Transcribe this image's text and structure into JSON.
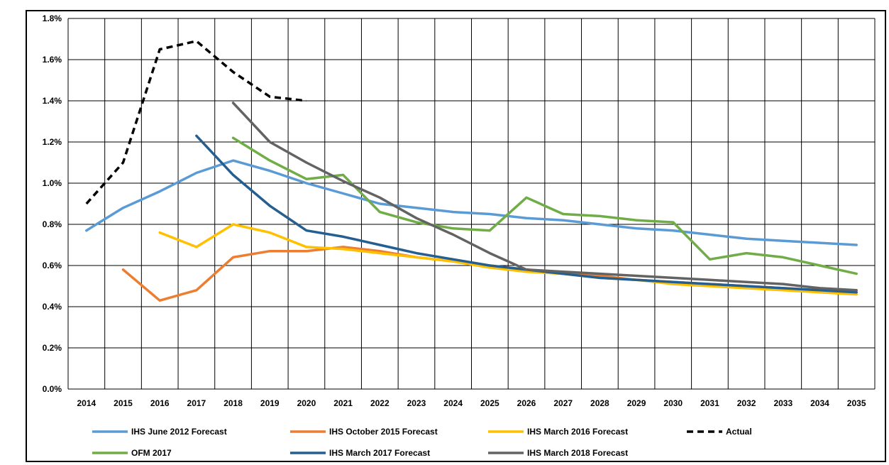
{
  "header": {
    "title_fragment": ""
  },
  "chart_data": {
    "type": "line",
    "title": "",
    "xlabel": "",
    "ylabel": "",
    "x": [
      2014,
      2015,
      2016,
      2017,
      2018,
      2019,
      2020,
      2021,
      2022,
      2023,
      2024,
      2025,
      2026,
      2027,
      2028,
      2029,
      2030,
      2031,
      2032,
      2033,
      2034,
      2035
    ],
    "ylim": [
      0,
      1.8
    ],
    "y_ticks": [
      0,
      0.2,
      0.4,
      0.6,
      0.8,
      1.0,
      1.2,
      1.4,
      1.6,
      1.8
    ],
    "y_tick_labels": [
      "0.0%",
      "0.2%",
      "0.4%",
      "0.6%",
      "0.8%",
      "1.0%",
      "1.2%",
      "1.4%",
      "1.6%",
      "1.8%"
    ],
    "x_tick_labels": [
      "2014",
      "2015",
      "2016",
      "2017",
      "2018",
      "2019",
      "2020",
      "2021",
      "2022",
      "2023",
      "2024",
      "2025",
      "2026",
      "2027",
      "2028",
      "2029",
      "2030",
      "2031",
      "2032",
      "2033",
      "2034",
      "2035"
    ],
    "grid": true,
    "legend_position": "bottom",
    "series": [
      {
        "name": "IHS June 2012 Forecast",
        "color": "#5B9BD5",
        "dashed": false,
        "values": [
          0.77,
          0.88,
          0.96,
          1.05,
          1.11,
          1.06,
          1.0,
          0.95,
          0.9,
          0.88,
          0.86,
          0.85,
          0.83,
          0.82,
          0.8,
          0.78,
          0.77,
          0.75,
          0.73,
          0.72,
          0.71,
          0.7
        ]
      },
      {
        "name": "IHS October 2015 Forecast",
        "color": "#ED7D31",
        "dashed": false,
        "values": [
          null,
          0.58,
          0.43,
          0.48,
          0.64,
          0.67,
          0.67,
          0.69,
          0.67,
          0.64,
          0.62,
          0.6,
          0.58,
          0.56,
          0.55,
          0.53,
          0.52,
          0.51,
          0.5,
          0.49,
          0.48,
          0.47
        ]
      },
      {
        "name": "IHS March 2016 Forecast",
        "color": "#FFC000",
        "dashed": false,
        "values": [
          null,
          null,
          0.76,
          0.69,
          0.8,
          0.76,
          0.69,
          0.68,
          0.66,
          0.64,
          0.62,
          0.59,
          0.57,
          0.56,
          0.54,
          0.53,
          0.51,
          0.5,
          0.49,
          0.48,
          0.47,
          0.46
        ]
      },
      {
        "name": "Actual",
        "color": "#000000",
        "dashed": true,
        "values": [
          0.9,
          1.1,
          1.65,
          1.69,
          1.54,
          1.42,
          1.4,
          null,
          null,
          null,
          null,
          null,
          null,
          null,
          null,
          null,
          null,
          null,
          null,
          null,
          null,
          null
        ]
      },
      {
        "name": "OFM 2017",
        "color": "#70AD47",
        "dashed": false,
        "values": [
          null,
          null,
          null,
          null,
          1.22,
          1.11,
          1.02,
          1.04,
          0.86,
          0.81,
          0.78,
          0.77,
          0.93,
          0.85,
          0.84,
          0.82,
          0.81,
          0.63,
          0.66,
          0.64,
          0.6,
          0.56
        ]
      },
      {
        "name": "IHS March 2017 Forecast",
        "color": "#255E91",
        "dashed": false,
        "values": [
          null,
          null,
          null,
          1.23,
          1.04,
          0.89,
          0.77,
          0.74,
          0.7,
          0.66,
          0.63,
          0.6,
          0.58,
          0.56,
          0.54,
          0.53,
          0.52,
          0.51,
          0.5,
          0.49,
          0.48,
          0.47
        ]
      },
      {
        "name": "IHS March 2018 Forecast",
        "color": "#636363",
        "dashed": false,
        "values": [
          null,
          null,
          null,
          null,
          1.39,
          1.2,
          1.1,
          1.01,
          0.93,
          0.83,
          0.75,
          0.66,
          0.58,
          0.57,
          0.56,
          0.55,
          0.54,
          0.53,
          0.52,
          0.51,
          0.49,
          0.48
        ]
      }
    ]
  }
}
